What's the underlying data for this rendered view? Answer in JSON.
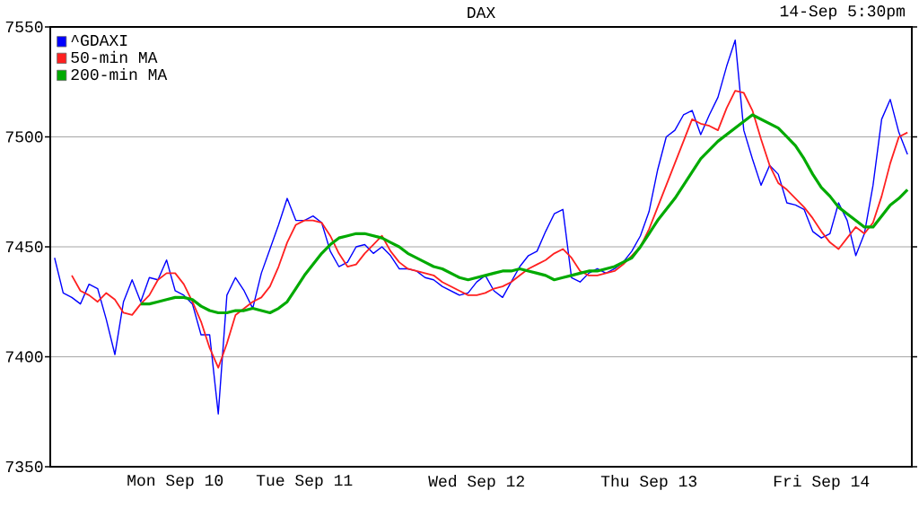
{
  "chart_data": {
    "type": "line",
    "title": "DAX",
    "subtitle": "14-Sep 5:30pm",
    "categories": [
      null,
      null,
      null,
      null,
      null,
      null,
      null,
      null,
      null,
      null,
      null,
      null,
      null,
      null,
      "Mon Sep 10",
      null,
      null,
      null,
      null,
      null,
      null,
      null,
      null,
      null,
      null,
      null,
      null,
      null,
      null,
      "Tue Sep 11",
      null,
      null,
      null,
      null,
      null,
      null,
      null,
      null,
      null,
      null,
      null,
      null,
      null,
      null,
      null,
      null,
      null,
      null,
      null,
      "Wed Sep 12",
      null,
      null,
      null,
      null,
      null,
      null,
      null,
      null,
      null,
      null,
      null,
      null,
      null,
      null,
      null,
      null,
      null,
      null,
      null,
      "Thu Sep 13",
      null,
      null,
      null,
      null,
      null,
      null,
      null,
      null,
      null,
      null,
      null,
      null,
      null,
      null,
      null,
      null,
      null,
      null,
      null,
      "Fri Sep 14",
      null,
      null,
      null,
      null,
      null,
      null,
      null,
      null,
      null,
      null
    ],
    "ylim": [
      7350,
      7550
    ],
    "yticks": [
      7350,
      7400,
      7450,
      7500,
      7550
    ],
    "grid": "y",
    "legend": "top left",
    "series": [
      {
        "name": "^GDAXI",
        "color": "#0000ff",
        "values": [
          7445,
          7429,
          7427,
          7424,
          7433,
          7431,
          7417,
          7401,
          7425,
          7435,
          7425,
          7436,
          7435,
          7444,
          7430,
          7428,
          7424,
          7410,
          7410,
          7374,
          7428,
          7436,
          7430,
          7422,
          7438,
          7449,
          7460,
          7472,
          7462,
          7462,
          7464,
          7461,
          7448,
          7441,
          7443,
          7450,
          7451,
          7447,
          7450,
          7446,
          7440,
          7440,
          7439,
          7436,
          7435,
          7432,
          7430,
          7428,
          7429,
          7434,
          7437,
          7430,
          7427,
          7434,
          7441,
          7446,
          7448,
          7457,
          7465,
          7467,
          7436,
          7434,
          7438,
          7440,
          7438,
          7440,
          7443,
          7448,
          7455,
          7466,
          7485,
          7500,
          7503,
          7510,
          7512,
          7501,
          7510,
          7518,
          7532,
          7544,
          7503,
          7490,
          7478,
          7487,
          7483,
          7470,
          7469,
          7467,
          7457,
          7454,
          7456,
          7470,
          7462,
          7446,
          7456,
          7478,
          7508,
          7517,
          7502,
          7492
        ]
      },
      {
        "name": "50-min MA",
        "color": "#ff2020",
        "values": [
          null,
          null,
          7437,
          7430,
          7428,
          7425,
          7429,
          7426,
          7420,
          7419,
          7424,
          7428,
          7435,
          7438,
          7438,
          7433,
          7425,
          7416,
          7404,
          7395,
          7406,
          7419,
          7422,
          7425,
          7427,
          7432,
          7441,
          7452,
          7460,
          7462,
          7462,
          7461,
          7455,
          7447,
          7441,
          7442,
          7447,
          7451,
          7455,
          7448,
          7443,
          7440,
          7439,
          7438,
          7437,
          7434,
          7432,
          7430,
          7428,
          7428,
          7429,
          7431,
          7432,
          7434,
          7437,
          7440,
          7442,
          7444,
          7447,
          7449,
          7445,
          7439,
          7437,
          7437,
          7438,
          7439,
          7442,
          7446,
          7450,
          7458,
          7468,
          7478,
          7488,
          7498,
          7508,
          7506,
          7505,
          7503,
          7513,
          7521,
          7520,
          7512,
          7499,
          7487,
          7479,
          7476,
          7472,
          7468,
          7463,
          7457,
          7452,
          7449,
          7454,
          7459,
          7456,
          7461,
          7473,
          7488,
          7500,
          7502
        ]
      },
      {
        "name": "200-min MA",
        "color": "#00aa00",
        "values": [
          null,
          null,
          null,
          null,
          null,
          null,
          null,
          null,
          null,
          null,
          7424,
          7424,
          7425,
          7426,
          7427,
          7427,
          7426,
          7423,
          7421,
          7420,
          7420,
          7421,
          7421,
          7422,
          7421,
          7420,
          7422,
          7425,
          7431,
          7437,
          7442,
          7447,
          7451,
          7454,
          7455,
          7456,
          7456,
          7455,
          7454,
          7452,
          7450,
          7447,
          7445,
          7443,
          7441,
          7440,
          7438,
          7436,
          7435,
          7436,
          7437,
          7438,
          7439,
          7439,
          7440,
          7439,
          7438,
          7437,
          7435,
          7436,
          7437,
          7438,
          7439,
          7439,
          7440,
          7441,
          7443,
          7445,
          7450,
          7456,
          7462,
          7467,
          7472,
          7478,
          7484,
          7490,
          7494,
          7498,
          7501,
          7504,
          7507,
          7510,
          7508,
          7506,
          7504,
          7500,
          7496,
          7490,
          7483,
          7477,
          7473,
          7468,
          7465,
          7462,
          7459,
          7459,
          7464,
          7469,
          7472,
          7476
        ]
      }
    ]
  }
}
